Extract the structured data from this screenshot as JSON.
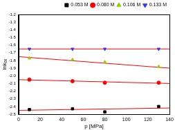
{
  "chart_data": {
    "type": "scatter",
    "x_label": "p [MPa]",
    "y_label": "lnkₒₓ",
    "xlim": [
      0,
      140
    ],
    "xticks": [
      0,
      20,
      40,
      60,
      80,
      100,
      120,
      140
    ],
    "ylim": [
      -2.5,
      -1.2
    ],
    "yticks": [
      -2.5,
      -2.4,
      -2.3,
      -2.2,
      -2.1,
      {
        "value": -2,
        "label": "-2.0"
      },
      -1.9,
      -1.8,
      -1.7,
      -1.6,
      -1.5,
      -1.4,
      -1.3,
      -1.2
    ],
    "grid": false,
    "legend": "upper right",
    "x": [
      10,
      50,
      80,
      130
    ],
    "series": [
      {
        "name": "0.053 M",
        "color": "#000000",
        "marker": "square",
        "values": [
          -2.44,
          -2.43,
          -2.47,
          -2.4
        ],
        "fit": {
          "x": [
            0,
            140
          ],
          "values": [
            -2.45,
            -2.42
          ],
          "color": "#ff0000",
          "line_style": "solid"
        }
      },
      {
        "name": "0.080 M",
        "color": "#ff0000",
        "marker": "circle",
        "values": [
          -2.05,
          -2.07,
          -2.09,
          -2.09
        ],
        "fit": {
          "x": [
            0,
            140
          ],
          "values": [
            -2.05,
            -2.1
          ],
          "color": "#ff0000",
          "line_style": "solid"
        }
      },
      {
        "name": "0.106 M",
        "color": "#99cc00",
        "marker": "triangle",
        "values": [
          -1.77,
          -1.79,
          -1.82,
          -1.88
        ],
        "fit": {
          "x": [
            0,
            140
          ],
          "values": [
            -1.75,
            -1.9
          ],
          "color": "#ff0000",
          "line_style": "solid"
        }
      },
      {
        "name": "0.133 M",
        "color": "#3333ff",
        "marker": "triangle_down",
        "values": [
          -1.65,
          -1.65,
          -1.65,
          -1.65
        ],
        "fit": {
          "x": [
            0,
            140
          ],
          "values": [
            -1.65,
            -1.65
          ],
          "color": "#ff0000",
          "line_style": "solid"
        }
      }
    ]
  }
}
